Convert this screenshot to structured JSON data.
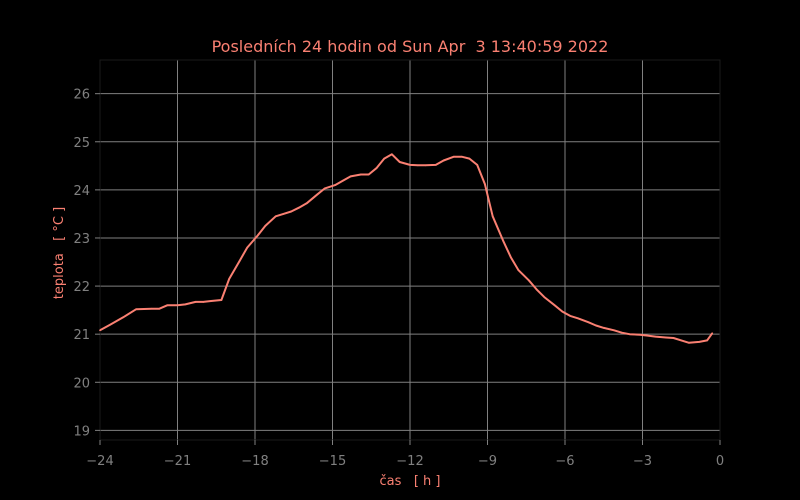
{
  "chart_data": {
    "type": "line",
    "title": "Posledních 24 hodin od Sun Apr  3 13:40:59 2022",
    "xlabel": "čas   [ h ]",
    "ylabel": "teplota   [ °C ]",
    "xlim": [
      -24,
      0
    ],
    "ylim": [
      18.8,
      26.7
    ],
    "xticks": [
      -24,
      -21,
      -18,
      -15,
      -12,
      -9,
      -6,
      -3,
      0
    ],
    "yticks": [
      19,
      20,
      21,
      22,
      23,
      24,
      25,
      26
    ],
    "grid": true,
    "background": "#000000",
    "text_color": "#fa8072",
    "tick_color": "#808080",
    "grid_color": "#808080",
    "series": [
      {
        "color": "#fa8072",
        "x": [
          -24.0,
          -23.6,
          -23.1,
          -22.6,
          -22.0,
          -21.7,
          -21.4,
          -21.0,
          -20.7,
          -20.3,
          -20.0,
          -19.7,
          -19.3,
          -19.0,
          -18.6,
          -18.3,
          -17.9,
          -17.6,
          -17.2,
          -16.9,
          -16.6,
          -16.3,
          -16.0,
          -15.6,
          -15.3,
          -14.9,
          -14.6,
          -14.3,
          -13.9,
          -13.6,
          -13.3,
          -13.0,
          -12.7,
          -12.4,
          -12.0,
          -11.7,
          -11.4,
          -11.0,
          -10.7,
          -10.3,
          -10.0,
          -9.7,
          -9.4,
          -9.1,
          -8.8,
          -8.4,
          -8.1,
          -7.8,
          -7.4,
          -7.1,
          -6.8,
          -6.4,
          -6.1,
          -5.8,
          -5.5,
          -5.1,
          -4.8,
          -4.5,
          -4.1,
          -3.8,
          -3.5,
          -3.1,
          -2.8,
          -2.5,
          -2.1,
          -1.8,
          -1.5,
          -1.2,
          -0.8,
          -0.5,
          -0.3
        ],
        "y": [
          21.08,
          21.2,
          21.35,
          21.52,
          21.53,
          21.53,
          21.6,
          21.6,
          21.62,
          21.67,
          21.67,
          21.69,
          21.71,
          22.15,
          22.52,
          22.8,
          23.05,
          23.25,
          23.45,
          23.5,
          23.55,
          23.63,
          23.72,
          23.9,
          24.03,
          24.1,
          24.19,
          24.28,
          24.32,
          24.32,
          24.45,
          24.65,
          24.74,
          24.58,
          24.52,
          24.51,
          24.51,
          24.52,
          24.61,
          24.69,
          24.69,
          24.65,
          24.52,
          24.12,
          23.45,
          22.95,
          22.6,
          22.33,
          22.12,
          21.93,
          21.77,
          21.6,
          21.47,
          21.38,
          21.33,
          21.25,
          21.18,
          21.13,
          21.08,
          21.03,
          21.0,
          20.99,
          20.97,
          20.95,
          20.93,
          20.92,
          20.87,
          20.82,
          20.84,
          20.87,
          21.02
        ]
      }
    ]
  }
}
